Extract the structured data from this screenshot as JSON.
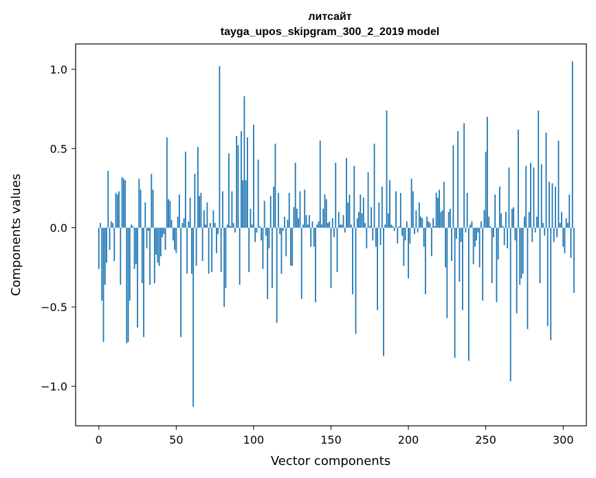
{
  "chart_data": {
    "type": "bar",
    "title_line1": "литсайт",
    "title_line2": "tayga_upos_skipgram_300_2_2019 model",
    "xlabel": "Vector components",
    "ylabel": "Components values",
    "xlim": [
      -15,
      315
    ],
    "ylim": [
      -1.25,
      1.16
    ],
    "xticks": [
      0,
      50,
      100,
      150,
      200,
      250,
      300
    ],
    "xtick_labels": [
      "0",
      "50",
      "100",
      "150",
      "200",
      "250",
      "300"
    ],
    "yticks": [
      -1.0,
      -0.5,
      0.0,
      0.5,
      1.0
    ],
    "ytick_labels": [
      "−1.0",
      "−0.5",
      "0.0",
      "0.5",
      "1.0"
    ],
    "bar_color": "#1f77b4",
    "bar_width": 0.8,
    "values": [
      -0.26,
      0.03,
      -0.46,
      -0.72,
      -0.36,
      -0.22,
      0.36,
      -0.14,
      0.04,
      0.03,
      -0.21,
      0.22,
      0.21,
      0.23,
      -0.36,
      0.32,
      0.31,
      0.3,
      -0.73,
      -0.72,
      -0.46,
      0.02,
      0.01,
      -0.26,
      -0.23,
      -0.63,
      0.31,
      0.24,
      -0.35,
      -0.69,
      0.16,
      -0.13,
      -0.02,
      -0.36,
      0.34,
      0.24,
      -0.35,
      -0.17,
      -0.22,
      -0.24,
      -0.18,
      -0.06,
      -0.04,
      -0.14,
      0.57,
      0.18,
      0.17,
      0.05,
      -0.08,
      -0.14,
      -0.16,
      0.07,
      0.21,
      -0.69,
      0.03,
      0.06,
      0.48,
      -0.29,
      0.04,
      0.19,
      -0.29,
      -1.13,
      0.34,
      -0.24,
      0.51,
      0.2,
      0.22,
      -0.21,
      0.11,
      0.02,
      0.16,
      -0.29,
      0.03,
      -0.28,
      0.11,
      0.03,
      -0.16,
      -0.04,
      1.02,
      -0.28,
      0.23,
      -0.5,
      -0.38,
      0.02,
      0.47,
      0.01,
      0.23,
      0.03,
      -0.03,
      0.58,
      0.52,
      -0.36,
      0.61,
      0.3,
      0.83,
      0.3,
      0.57,
      -0.28,
      0.12,
      0.02,
      0.65,
      -0.09,
      -0.03,
      0.43,
      0.01,
      -0.08,
      -0.26,
      0.17,
      -0.05,
      -0.45,
      -0.13,
      0.2,
      -0.38,
      0.26,
      0.53,
      -0.6,
      0.22,
      -0.04,
      -0.29,
      -0.02,
      0.07,
      -0.18,
      0.05,
      0.22,
      -0.24,
      -0.24,
      0.13,
      0.41,
      0.12,
      0.06,
      0.23,
      -0.45,
      0.02,
      0.24,
      0.08,
      0.02,
      0.08,
      -0.12,
      0.04,
      -0.12,
      -0.47,
      0.02,
      0.04,
      0.55,
      0.02,
      0.12,
      0.21,
      0.18,
      0.03,
      0.04,
      -0.38,
      0.06,
      -0.06,
      0.41,
      -0.28,
      0.1,
      0.02,
      0.02,
      0.08,
      -0.03,
      0.44,
      0.16,
      0.21,
      0.02,
      -0.42,
      0.39,
      -0.67,
      0.06,
      0.1,
      0.21,
      0.09,
      0.19,
      0.03,
      -0.13,
      0.35,
      0.01,
      0.13,
      -0.08,
      0.53,
      -0.12,
      -0.52,
      0.16,
      -0.11,
      0.26,
      -0.81,
      0.02,
      0.74,
      0.09,
      0.3,
      0.02,
      0.01,
      -0.02,
      0.23,
      -0.1,
      0.01,
      0.22,
      -0.05,
      -0.24,
      -0.08,
      0.04,
      -0.32,
      -0.1,
      0.31,
      0.23,
      -0.04,
      0.11,
      -0.03,
      0.16,
      0.07,
      0.06,
      -0.12,
      -0.42,
      0.07,
      0.04,
      0.03,
      -0.18,
      0.06,
      0.01,
      0.22,
      0.19,
      0.24,
      0.1,
      0.11,
      0.29,
      -0.25,
      -0.57,
      0.1,
      0.12,
      -0.21,
      0.52,
      -0.82,
      -0.07,
      0.61,
      -0.34,
      -0.09,
      -0.52,
      0.66,
      -0.03,
      0.22,
      -0.84,
      0.02,
      0.04,
      -0.23,
      -0.12,
      -0.08,
      -0.03,
      -0.25,
      0.04,
      -0.46,
      0.11,
      0.48,
      0.7,
      0.07,
      0.01,
      -0.35,
      -0.06,
      0.21,
      -0.47,
      -0.2,
      0.26,
      0.09,
      0.01,
      -0.11,
      0.1,
      -0.13,
      0.38,
      -0.97,
      0.12,
      0.13,
      -0.08,
      -0.54,
      0.62,
      -0.36,
      -0.32,
      -0.29,
      0.07,
      0.39,
      -0.64,
      0.1,
      0.41,
      -0.09,
      0.38,
      -0.03,
      0.07,
      0.74,
      -0.35,
      0.4,
      0.03,
      -0.05,
      0.6,
      -0.62,
      0.29,
      -0.71,
      0.28,
      -0.09,
      0.26,
      -0.06,
      0.55,
      0.03,
      0.1,
      -0.12,
      -0.16,
      0.06,
      0.03,
      0.21,
      -0.19,
      1.05,
      -0.41
    ]
  }
}
